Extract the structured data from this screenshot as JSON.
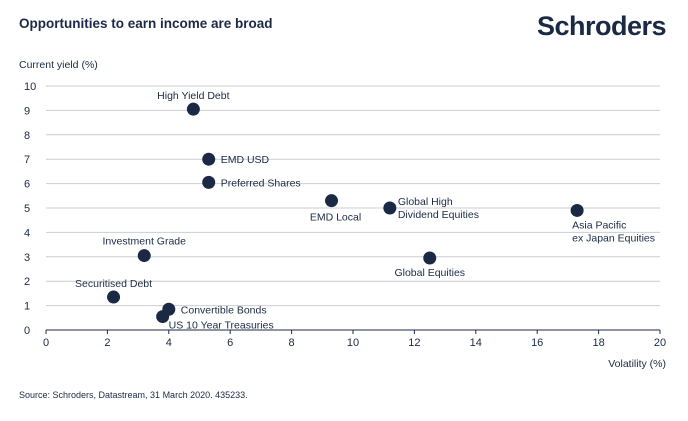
{
  "header": {
    "title": "Opportunities to earn income are broad",
    "logo_text": "Schroders"
  },
  "footer": {
    "source": "Source: Schroders, Datastream, 31 March 2020. 435233."
  },
  "colors": {
    "marker": "#1b2a44",
    "grid": "#c9cdd3",
    "text": "#1b2a44"
  },
  "chart_data": {
    "type": "scatter",
    "title": "Opportunities to earn income are broad",
    "xlabel": "Volatility (%)",
    "ylabel": "Current yield (%)",
    "xlim": [
      0,
      20
    ],
    "ylim": [
      0,
      10
    ],
    "xticks": [
      0,
      2,
      4,
      6,
      8,
      10,
      12,
      14,
      16,
      18,
      20
    ],
    "yticks": [
      0,
      1,
      2,
      3,
      4,
      5,
      6,
      7,
      8,
      9,
      10
    ],
    "grid": "horizontal",
    "points": [
      {
        "label": "High Yield Debt",
        "x": 4.8,
        "y": 9.05,
        "pos": "above"
      },
      {
        "label": "EMD USD",
        "x": 5.3,
        "y": 7.0,
        "pos": "right"
      },
      {
        "label": "Preferred Shares",
        "x": 5.3,
        "y": 6.05,
        "pos": "right"
      },
      {
        "label": "EMD Local",
        "x": 9.3,
        "y": 5.3,
        "pos": "below-left"
      },
      {
        "label": "Global High Dividend Equities",
        "lines": [
          "Global High",
          "Dividend Equities"
        ],
        "x": 11.2,
        "y": 5.0,
        "pos": "right-wrap"
      },
      {
        "label": "Asia Pacific ex Japan Equities",
        "lines": [
          "Asia Pacific",
          "ex Japan Equities"
        ],
        "x": 17.3,
        "y": 4.9,
        "pos": "below-wrap"
      },
      {
        "label": "Investment Grade",
        "x": 3.2,
        "y": 3.05,
        "pos": "above-right"
      },
      {
        "label": "Global Equities",
        "x": 12.5,
        "y": 2.95,
        "pos": "below"
      },
      {
        "label": "Securitised Debt",
        "x": 2.2,
        "y": 1.35,
        "pos": "above-left"
      },
      {
        "label": "Convertible Bonds",
        "x": 4.0,
        "y": 0.85,
        "pos": "right"
      },
      {
        "label": "US 10 Year Treasuries",
        "x": 3.8,
        "y": 0.55,
        "pos": "below-right"
      }
    ]
  }
}
